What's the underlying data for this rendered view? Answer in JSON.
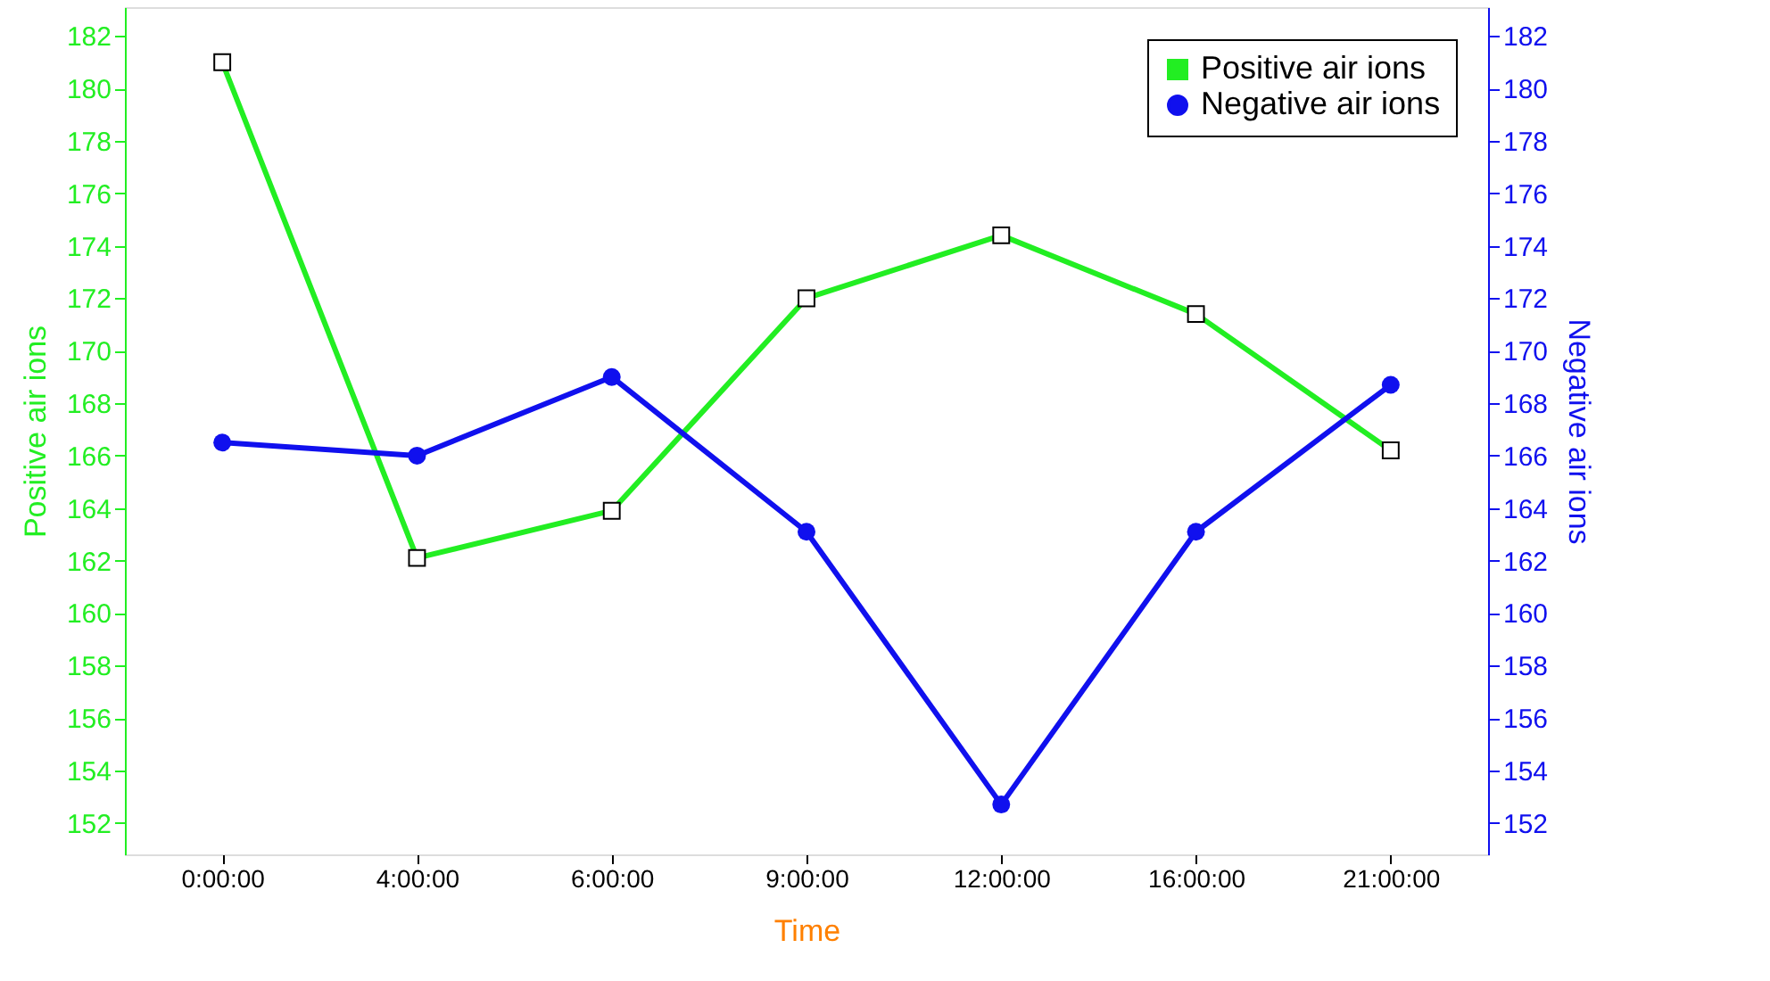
{
  "chart_data": {
    "type": "line",
    "xlabel": "Time",
    "ylabel": "Positive air ions",
    "y2label": "Negative air ions",
    "categories": [
      "0:00:00",
      "4:00:00",
      "6:00:00",
      "9:00:00",
      "12:00:00",
      "16:00:00",
      "21:00:00"
    ],
    "series": [
      {
        "name": "Positive air ions",
        "color": "#22ee22",
        "marker": "square",
        "values": [
          181.0,
          162.1,
          163.9,
          172.0,
          174.4,
          171.4,
          166.2
        ]
      },
      {
        "name": "Negative air ions",
        "color": "#1010ee",
        "marker": "circle",
        "axis": "y2",
        "values": [
          166.5,
          166.0,
          169.0,
          163.1,
          152.7,
          163.1,
          168.7
        ]
      }
    ],
    "ylim": [
      150.8,
      183.1
    ],
    "yticks": [
      152,
      154,
      156,
      158,
      160,
      162,
      164,
      166,
      168,
      170,
      172,
      174,
      176,
      178,
      180,
      182
    ],
    "y2lim": [
      150.8,
      183.1
    ],
    "y2ticks": [
      152,
      154,
      156,
      158,
      160,
      162,
      164,
      166,
      168,
      170,
      172,
      174,
      176,
      178,
      180,
      182
    ],
    "grid": false,
    "legend": "top right"
  }
}
